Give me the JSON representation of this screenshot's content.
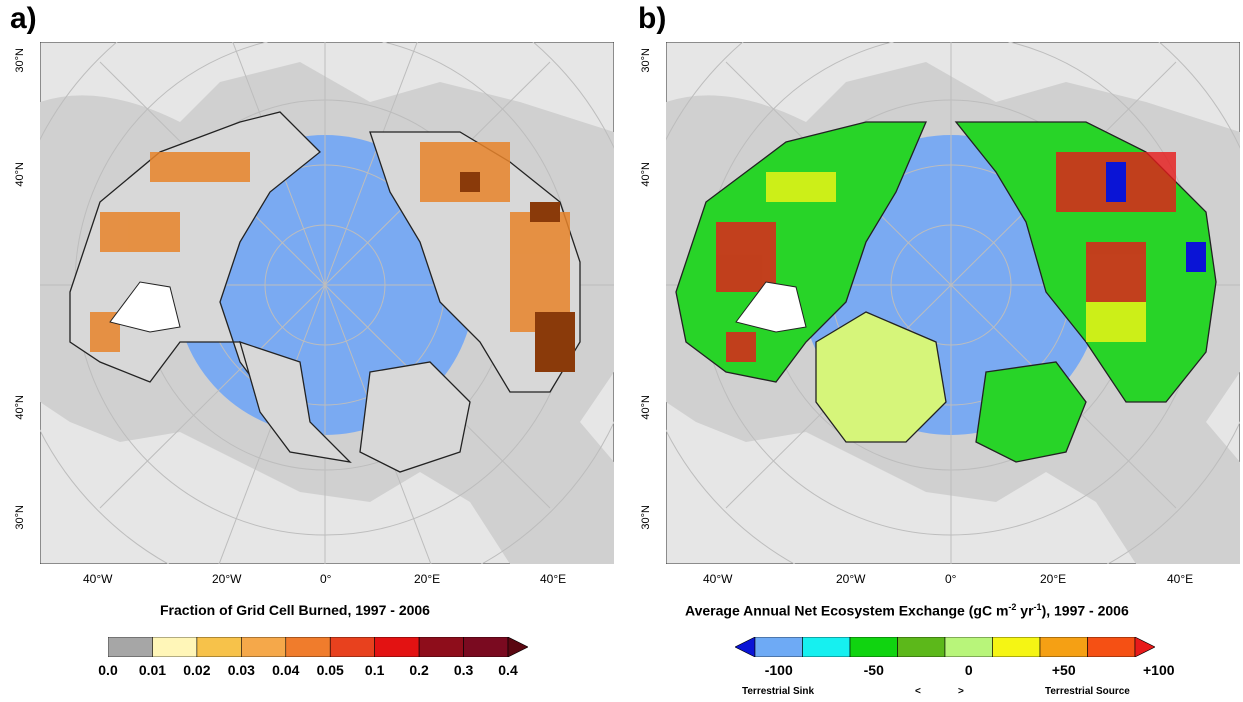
{
  "panels": {
    "a": {
      "label": "a)",
      "lat_labels": {
        "top": "30°N",
        "mid_top": "40°N",
        "mid_bottom": "40°N",
        "bottom": "30°N"
      },
      "lon_labels": [
        "40°W",
        "20°W",
        "0°",
        "20°E",
        "40°E"
      ],
      "legend": {
        "title": "Fraction of Grid Cell Burned, 1997 - 2006",
        "ticks": [
          "0.0",
          "0.01",
          "0.02",
          "0.03",
          "0.04",
          "0.05",
          "0.1",
          "0.2",
          "0.3",
          "0.4"
        ],
        "colors": [
          "#a6a6a6",
          "#fff6b8",
          "#f7c24a",
          "#f5a84a",
          "#f07c2c",
          "#e8411e",
          "#e31212",
          "#8e0d1b",
          "#7a0a20",
          "#5a0711"
        ]
      }
    },
    "b": {
      "label": "b)",
      "lat_labels": {
        "top": "30°N",
        "mid_top": "40°N",
        "mid_bottom": "40°N",
        "bottom": "30°N"
      },
      "lon_labels": [
        "40°W",
        "20°W",
        "0°",
        "20°E",
        "40°E"
      ],
      "legend": {
        "title_main": "Average Annual Net Ecosystem Exchange (gC m",
        "title_sup1": "-2",
        "title_mid": " yr",
        "title_sup2": "-1",
        "title_end": "), 1997 - 2006",
        "ticks": [
          "-100",
          "-50",
          "0",
          "+50",
          "+100"
        ],
        "colors": [
          "#0a14d6",
          "#6eaaf5",
          "#16f0f0",
          "#10d410",
          "#5cb81a",
          "#b8f57a",
          "#f5f514",
          "#f5a014",
          "#f55014",
          "#e81a1a"
        ],
        "sink_label": "Terrestrial Sink",
        "lt": "<",
        "gt": ">",
        "source_label": "Terrestrial Source"
      }
    }
  },
  "colors": {
    "ocean_arctic": "#7aaaf2",
    "land_gray": "#d2d2d2",
    "background": "#e4e4e4"
  }
}
